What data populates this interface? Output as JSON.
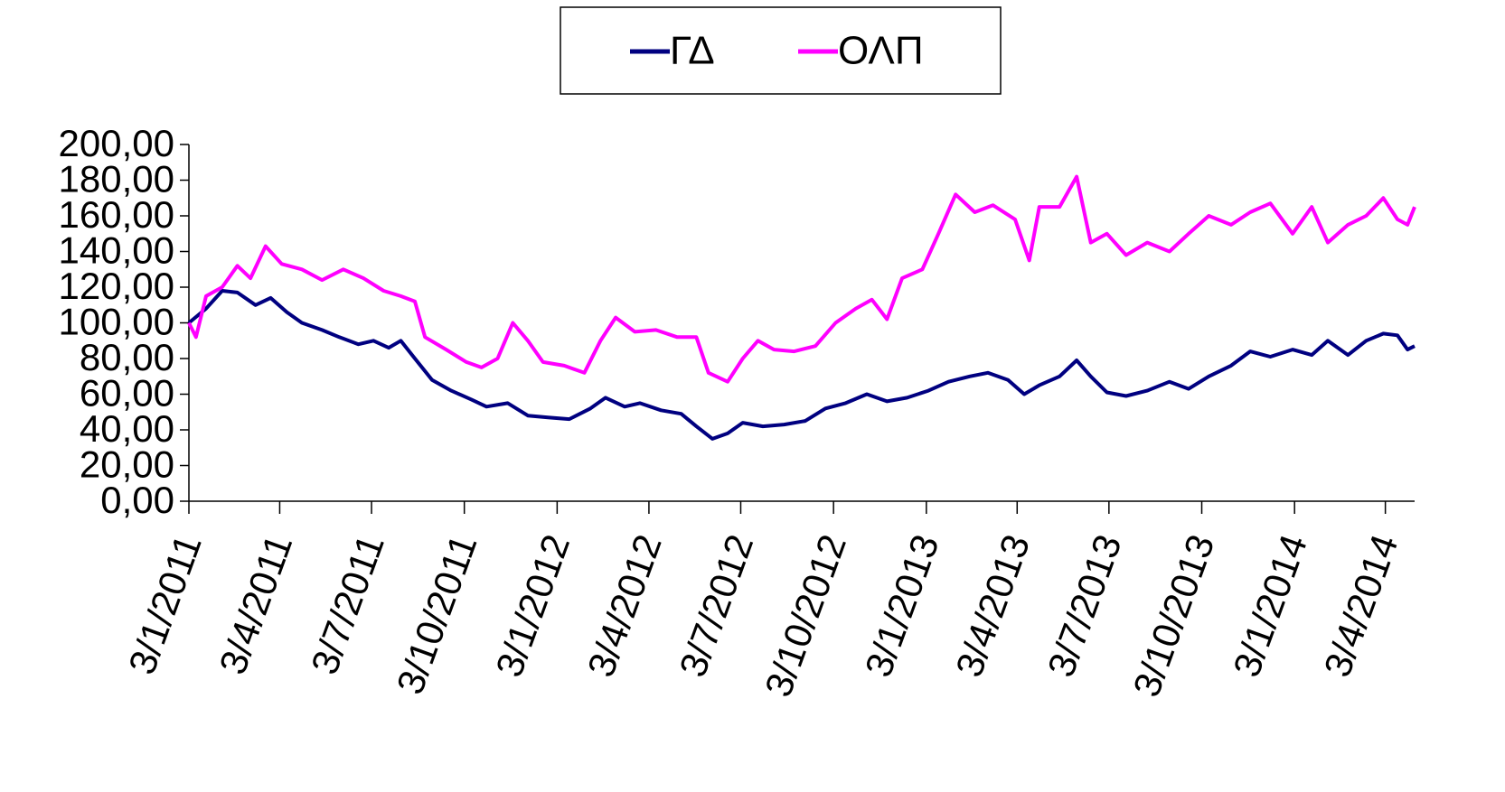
{
  "chart_data": {
    "type": "line",
    "xlim": [
      "2011-01-03",
      "2014-05-02"
    ],
    "ylim": [
      0,
      200
    ],
    "yticks": [
      {
        "value": 0,
        "label": "0,00"
      },
      {
        "value": 20,
        "label": "20,00"
      },
      {
        "value": 40,
        "label": "40,00"
      },
      {
        "value": 60,
        "label": "60,00"
      },
      {
        "value": 80,
        "label": "80,00"
      },
      {
        "value": 100,
        "label": "100,00"
      },
      {
        "value": 120,
        "label": "120,00"
      },
      {
        "value": 140,
        "label": "140,00"
      },
      {
        "value": 160,
        "label": "160,00"
      },
      {
        "value": 180,
        "label": "180,00"
      },
      {
        "value": 200,
        "label": "200,00"
      }
    ],
    "xticks": [
      {
        "value": "2011-01-03",
        "label": "3/1/2011"
      },
      {
        "value": "2011-04-03",
        "label": "3/4/2011"
      },
      {
        "value": "2011-07-03",
        "label": "3/7/2011"
      },
      {
        "value": "2011-10-03",
        "label": "3/10/2011"
      },
      {
        "value": "2012-01-03",
        "label": "3/1/2012"
      },
      {
        "value": "2012-04-03",
        "label": "3/4/2012"
      },
      {
        "value": "2012-07-03",
        "label": "3/7/2012"
      },
      {
        "value": "2012-10-03",
        "label": "3/10/2012"
      },
      {
        "value": "2013-01-03",
        "label": "3/1/2013"
      },
      {
        "value": "2013-04-03",
        "label": "3/4/2013"
      },
      {
        "value": "2013-07-03",
        "label": "3/7/2013"
      },
      {
        "value": "2013-10-03",
        "label": "3/10/2013"
      },
      {
        "value": "2014-01-03",
        "label": "3/1/2014"
      },
      {
        "value": "2014-04-03",
        "label": "3/4/2014"
      }
    ],
    "legend": "top",
    "series": [
      {
        "name": "ΓΔ",
        "color": "#000080",
        "x": [
          "2011-01-03",
          "2011-01-20",
          "2011-02-05",
          "2011-02-20",
          "2011-03-10",
          "2011-03-25",
          "2011-04-10",
          "2011-04-25",
          "2011-05-15",
          "2011-06-01",
          "2011-06-20",
          "2011-07-05",
          "2011-07-20",
          "2011-08-01",
          "2011-08-15",
          "2011-09-01",
          "2011-09-20",
          "2011-10-10",
          "2011-10-25",
          "2011-11-15",
          "2011-12-05",
          "2011-12-25",
          "2012-01-15",
          "2012-02-05",
          "2012-02-20",
          "2012-03-10",
          "2012-03-25",
          "2012-04-15",
          "2012-05-05",
          "2012-05-20",
          "2012-06-05",
          "2012-06-20",
          "2012-07-05",
          "2012-07-25",
          "2012-08-15",
          "2012-09-05",
          "2012-09-25",
          "2012-10-15",
          "2012-11-05",
          "2012-11-25",
          "2012-12-15",
          "2013-01-05",
          "2013-01-25",
          "2013-02-15",
          "2013-03-05",
          "2013-03-25",
          "2013-04-10",
          "2013-04-25",
          "2013-05-15",
          "2013-06-01",
          "2013-06-15",
          "2013-07-01",
          "2013-07-20",
          "2013-08-10",
          "2013-09-01",
          "2013-09-20",
          "2013-10-10",
          "2013-11-01",
          "2013-11-20",
          "2013-12-10",
          "2014-01-01",
          "2014-01-20",
          "2014-02-05",
          "2014-02-25",
          "2014-03-15",
          "2014-04-01",
          "2014-04-15",
          "2014-04-25",
          "2014-05-02"
        ],
        "values": [
          100,
          108,
          118,
          117,
          110,
          114,
          106,
          100,
          96,
          92,
          88,
          90,
          86,
          90,
          80,
          68,
          62,
          57,
          53,
          55,
          48,
          47,
          46,
          52,
          58,
          53,
          55,
          51,
          49,
          42,
          35,
          38,
          44,
          42,
          43,
          45,
          52,
          55,
          60,
          56,
          58,
          62,
          67,
          70,
          72,
          68,
          60,
          65,
          70,
          79,
          70,
          61,
          59,
          62,
          67,
          63,
          70,
          76,
          84,
          81,
          85,
          82,
          90,
          82,
          90,
          94,
          93,
          85,
          87
        ]
      },
      {
        "name": "ΟΛΠ",
        "color": "#ff00ff",
        "x": [
          "2011-01-03",
          "2011-01-10",
          "2011-01-20",
          "2011-02-05",
          "2011-02-20",
          "2011-03-05",
          "2011-03-20",
          "2011-04-05",
          "2011-04-25",
          "2011-05-15",
          "2011-06-05",
          "2011-06-25",
          "2011-07-15",
          "2011-08-01",
          "2011-08-15",
          "2011-08-25",
          "2011-09-15",
          "2011-10-05",
          "2011-10-20",
          "2011-11-05",
          "2011-11-20",
          "2011-12-05",
          "2011-12-20",
          "2012-01-10",
          "2012-01-30",
          "2012-02-15",
          "2012-03-01",
          "2012-03-20",
          "2012-04-10",
          "2012-05-01",
          "2012-05-20",
          "2012-06-01",
          "2012-06-20",
          "2012-07-05",
          "2012-07-20",
          "2012-08-05",
          "2012-08-25",
          "2012-09-15",
          "2012-10-05",
          "2012-10-25",
          "2012-11-10",
          "2012-11-25",
          "2012-12-10",
          "2012-12-30",
          "2013-01-15",
          "2013-02-01",
          "2013-02-20",
          "2013-03-10",
          "2013-04-01",
          "2013-04-15",
          "2013-04-25",
          "2013-05-15",
          "2013-06-01",
          "2013-06-15",
          "2013-07-01",
          "2013-07-20",
          "2013-08-10",
          "2013-09-01",
          "2013-09-20",
          "2013-10-10",
          "2013-11-01",
          "2013-11-20",
          "2013-12-10",
          "2014-01-01",
          "2014-01-20",
          "2014-02-05",
          "2014-02-25",
          "2014-03-15",
          "2014-04-01",
          "2014-04-15",
          "2014-04-25",
          "2014-05-02"
        ],
        "values": [
          100,
          92,
          115,
          120,
          132,
          125,
          143,
          133,
          130,
          124,
          130,
          125,
          118,
          115,
          112,
          92,
          85,
          78,
          75,
          80,
          100,
          90,
          78,
          76,
          72,
          90,
          103,
          95,
          96,
          92,
          92,
          72,
          67,
          80,
          90,
          85,
          84,
          87,
          100,
          108,
          113,
          102,
          125,
          130,
          150,
          172,
          162,
          166,
          158,
          135,
          165,
          165,
          182,
          145,
          150,
          138,
          145,
          140,
          150,
          160,
          155,
          162,
          167,
          150,
          165,
          145,
          155,
          160,
          170,
          158,
          155,
          165
        ]
      }
    ]
  }
}
